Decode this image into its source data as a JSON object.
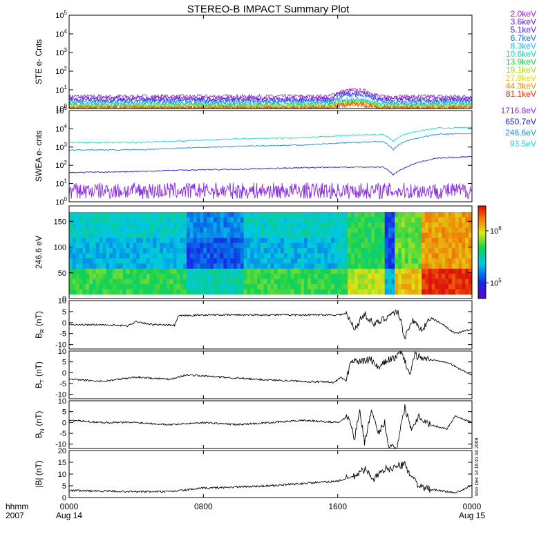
{
  "title": "STEREO-B IMPACT Summary Plot",
  "stamp": "Mon Dec 14 16:41:34 2009",
  "time_axis": {
    "row1_label": "hhmm",
    "row2_label": "2007",
    "ticks": [
      {
        "t": 0,
        "top": "0000",
        "bottom": "Aug 14"
      },
      {
        "t": 8,
        "top": "0800",
        "bottom": ""
      },
      {
        "t": 16,
        "top": "1600",
        "bottom": ""
      },
      {
        "t": 24,
        "top": "0000",
        "bottom": "Aug 15"
      }
    ],
    "range_hours": [
      0,
      24
    ]
  },
  "chart_data": [
    {
      "type": "line",
      "name": "ste",
      "ylabel": "STE e- Cnts",
      "yscale": "log",
      "ylim": [
        1,
        100000
      ],
      "yticks": [
        {
          "base": "10",
          "exp": "0"
        },
        {
          "base": "10",
          "exp": "1"
        },
        {
          "base": "10",
          "exp": "2"
        },
        {
          "base": "10",
          "exp": "3"
        },
        {
          "base": "10",
          "exp": "4"
        },
        {
          "base": "10",
          "exp": "5"
        }
      ],
      "series": [
        {
          "name": "2.0keV",
          "color": "#9c1ed0",
          "base": 4.2
        },
        {
          "name": "3.6keV",
          "color": "#6a1ed8",
          "base": 3.4
        },
        {
          "name": "5.1keV",
          "color": "#3a2be0",
          "base": 2.8
        },
        {
          "name": "6.7keV",
          "color": "#1f6ee8",
          "base": 2.3
        },
        {
          "name": "8.3keV",
          "color": "#1fb8e6",
          "base": 1.9
        },
        {
          "name": "10.6keV",
          "color": "#18d9b0",
          "base": 1.6
        },
        {
          "name": "13.9keV",
          "color": "#1fd04a",
          "base": 1.4
        },
        {
          "name": "19.1keV",
          "color": "#a8d81a",
          "base": 1.25
        },
        {
          "name": "27.8keV",
          "color": "#f0d21a",
          "base": 1.15
        },
        {
          "name": "44.3keV",
          "color": "#f08a12",
          "base": 1.08
        },
        {
          "name": "81.1keV",
          "color": "#e83010",
          "base": 1.03
        }
      ]
    },
    {
      "type": "line",
      "name": "swea",
      "ylabel": "SWEA e- cnts",
      "yscale": "log",
      "ylim": [
        1,
        100000
      ],
      "yticks": [
        {
          "base": "10",
          "exp": "0"
        },
        {
          "base": "10",
          "exp": "1"
        },
        {
          "base": "10",
          "exp": "2"
        },
        {
          "base": "10",
          "exp": "3"
        },
        {
          "base": "10",
          "exp": "4"
        },
        {
          "base": "10",
          "exp": "5"
        }
      ],
      "series": [
        {
          "name": "1716.8eV",
          "color": "#8a2be2",
          "points": [
            [
              0,
              4
            ],
            [
              4,
              4
            ],
            [
              8,
              4
            ],
            [
              12,
              4
            ],
            [
              16,
              4
            ],
            [
              20,
              4
            ],
            [
              24,
              4
            ]
          ],
          "noisy": true
        },
        {
          "name": "650.7eV",
          "color": "#1a1ad8",
          "points": [
            [
              0,
              40
            ],
            [
              4,
              45
            ],
            [
              7,
              55
            ],
            [
              10,
              60
            ],
            [
              14,
              75
            ],
            [
              17,
              80
            ],
            [
              18.7,
              80
            ],
            [
              19.3,
              30
            ],
            [
              20,
              70
            ],
            [
              22,
              250
            ],
            [
              24,
              300
            ]
          ]
        },
        {
          "name": "246.6eV",
          "color": "#1a8ae8",
          "points": [
            [
              0,
              700
            ],
            [
              4,
              700
            ],
            [
              7,
              900
            ],
            [
              10,
              1100
            ],
            [
              14,
              1300
            ],
            [
              17,
              1800
            ],
            [
              18.7,
              2000
            ],
            [
              19.3,
              700
            ],
            [
              20,
              2000
            ],
            [
              22,
              5000
            ],
            [
              24,
              5500
            ]
          ]
        },
        {
          "name": "93.5eV",
          "color": "#1ad8c8",
          "points": [
            [
              0,
              1800
            ],
            [
              4,
              1800
            ],
            [
              7,
              2200
            ],
            [
              10,
              2800
            ],
            [
              14,
              3200
            ],
            [
              17,
              4500
            ],
            [
              18.7,
              4800
            ],
            [
              19.3,
              2000
            ],
            [
              20,
              5000
            ],
            [
              22,
              11000
            ],
            [
              24,
              12000
            ]
          ]
        }
      ]
    },
    {
      "type": "heatmap",
      "name": "pitch",
      "ylabel": "246.6 eV",
      "ylim": [
        0,
        180
      ],
      "yticks": [
        0,
        50,
        100,
        150
      ],
      "colorbar": {
        "scale": "log",
        "range": [
          50000,
          3000000
        ],
        "ticks": [
          {
            "base": "10",
            "exp": "5",
            "value": 100000
          },
          {
            "base": "10",
            "exp": "6",
            "value": 1000000
          }
        ]
      }
    },
    {
      "type": "line",
      "name": "br",
      "ylabel_main": "B",
      "ylabel_sub": "R",
      "ylabel_unit": "(nT)",
      "ylim": [
        -12,
        10
      ],
      "yticks": [
        -10,
        -5,
        0,
        5,
        10
      ],
      "points": [
        [
          0,
          -1
        ],
        [
          2,
          -1
        ],
        [
          3.5,
          -1.5
        ],
        [
          4,
          0.5
        ],
        [
          5,
          -1
        ],
        [
          6.3,
          -1.2
        ],
        [
          6.5,
          3
        ],
        [
          8,
          3.5
        ],
        [
          12,
          3.5
        ],
        [
          16,
          3.5
        ],
        [
          16.5,
          4
        ],
        [
          17,
          -3
        ],
        [
          17.6,
          4
        ],
        [
          18.2,
          -1
        ],
        [
          18.8,
          2
        ],
        [
          19.2,
          4
        ],
        [
          19.6,
          5
        ],
        [
          20,
          -7
        ],
        [
          20.4,
          1
        ],
        [
          21,
          -3
        ],
        [
          21.6,
          2
        ],
        [
          22.3,
          -1
        ],
        [
          23,
          -5
        ],
        [
          24,
          -3
        ]
      ]
    },
    {
      "type": "line",
      "name": "bt",
      "ylabel_main": "B",
      "ylabel_sub": "T",
      "ylabel_unit": "(nT)",
      "ylim": [
        -12,
        10
      ],
      "yticks": [
        -10,
        -5,
        0,
        5,
        10
      ],
      "points": [
        [
          0,
          -3
        ],
        [
          2,
          -4
        ],
        [
          4,
          -2
        ],
        [
          6,
          -3
        ],
        [
          7,
          -1
        ],
        [
          9,
          -2
        ],
        [
          11,
          -3
        ],
        [
          14,
          -4
        ],
        [
          15.8,
          -4.5
        ],
        [
          16.2,
          -2
        ],
        [
          16.5,
          -4
        ],
        [
          16.8,
          6
        ],
        [
          17.3,
          5
        ],
        [
          18,
          6
        ],
        [
          18.4,
          2
        ],
        [
          19,
          6
        ],
        [
          19.5,
          7
        ],
        [
          19.8,
          10
        ],
        [
          20.3,
          -1
        ],
        [
          20.6,
          8
        ],
        [
          21.5,
          6
        ],
        [
          22.5,
          5
        ],
        [
          23.2,
          2
        ],
        [
          24,
          -1
        ]
      ]
    },
    {
      "type": "line",
      "name": "bn",
      "ylabel_main": "B",
      "ylabel_sub": "N",
      "ylabel_unit": "(nT)",
      "ylim": [
        -12,
        10
      ],
      "yticks": [
        -10,
        -5,
        0,
        5,
        10
      ],
      "points": [
        [
          0,
          1
        ],
        [
          2,
          0
        ],
        [
          4,
          0
        ],
        [
          6,
          -1
        ],
        [
          8,
          0
        ],
        [
          10,
          -1
        ],
        [
          12,
          0
        ],
        [
          14,
          1
        ],
        [
          16,
          0
        ],
        [
          16.7,
          3
        ],
        [
          17,
          -8
        ],
        [
          17.3,
          6
        ],
        [
          17.6,
          -9
        ],
        [
          18,
          5
        ],
        [
          18.4,
          -5
        ],
        [
          18.8,
          0
        ],
        [
          19,
          -10
        ],
        [
          19.5,
          -12
        ],
        [
          20,
          7
        ],
        [
          20.4,
          -3
        ],
        [
          20.8,
          3
        ],
        [
          21.5,
          -1
        ],
        [
          22.5,
          -3
        ],
        [
          23,
          3
        ],
        [
          24,
          0
        ]
      ]
    },
    {
      "type": "line",
      "name": "bmag",
      "ylabel": "|B| (nT)",
      "ylim": [
        0,
        20
      ],
      "yticks": [
        0,
        5,
        10,
        15,
        20
      ],
      "points": [
        [
          0,
          3
        ],
        [
          4,
          2.5
        ],
        [
          6,
          2.5
        ],
        [
          8,
          4
        ],
        [
          10,
          4.5
        ],
        [
          12,
          5
        ],
        [
          14,
          6
        ],
        [
          16,
          7
        ],
        [
          17,
          9
        ],
        [
          17.6,
          12
        ],
        [
          18.2,
          8
        ],
        [
          18.8,
          12
        ],
        [
          19.5,
          13
        ],
        [
          20,
          14
        ],
        [
          20.4,
          9
        ],
        [
          21,
          4
        ],
        [
          22,
          3
        ],
        [
          23,
          2
        ],
        [
          24,
          5
        ]
      ]
    }
  ]
}
